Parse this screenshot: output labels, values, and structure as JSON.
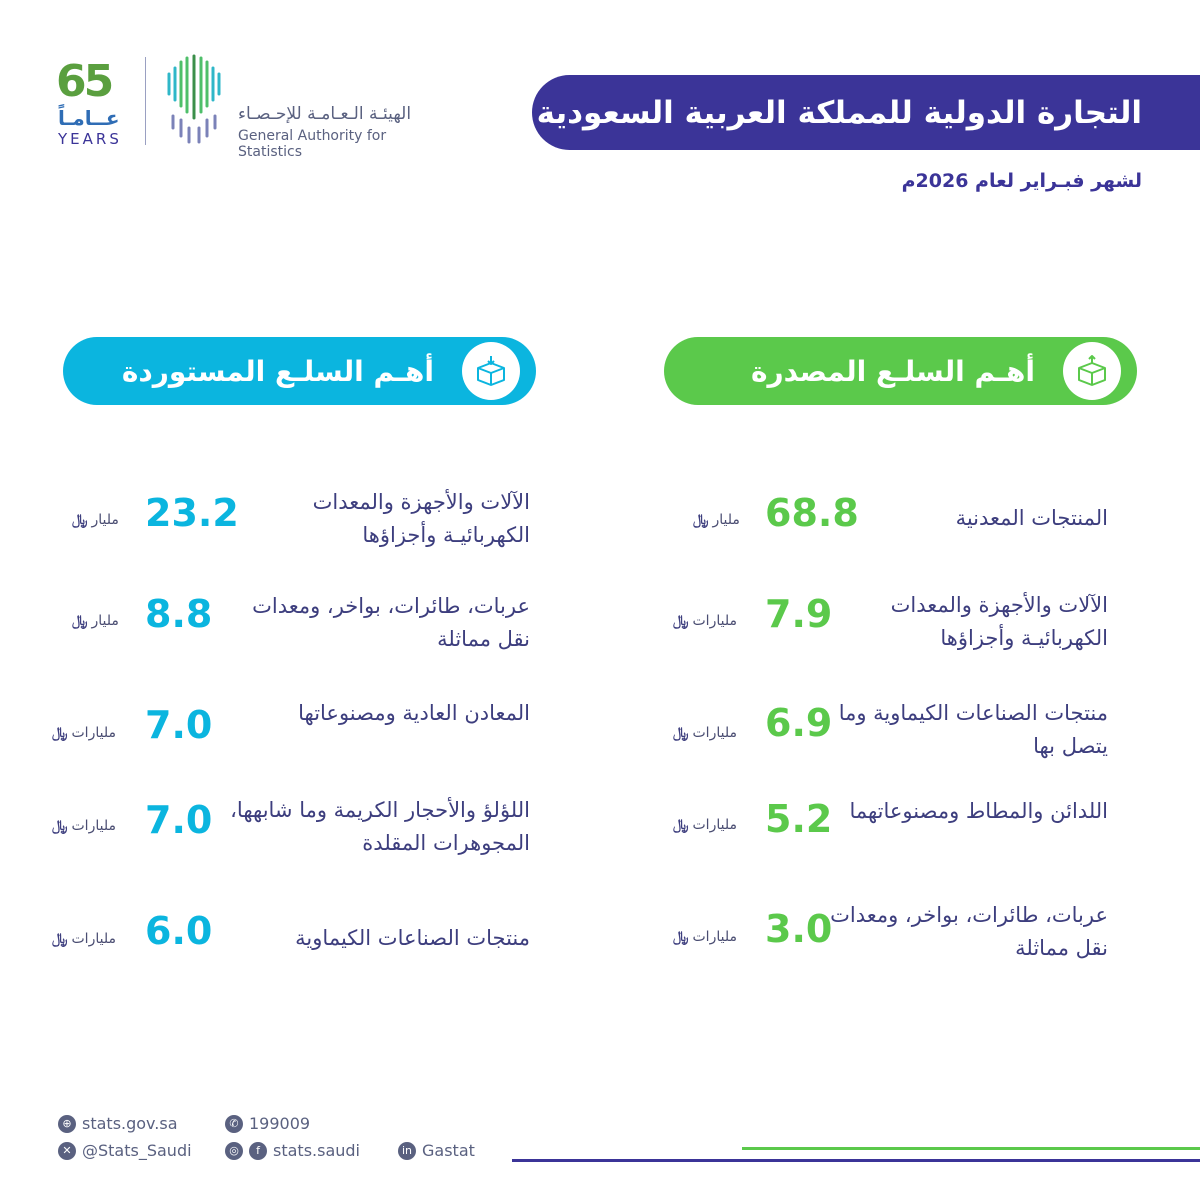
{
  "header": {
    "title": "التجارة الدولية للمملكة العربية السعودية",
    "subtitle": "لشهر فبـراير لعام 2026م",
    "colors": {
      "title_banner": "#3b3498",
      "exports": "#5bc94b",
      "imports": "#0bb5df"
    }
  },
  "logo": {
    "years_number": "65",
    "years_ar": "عــامـاً",
    "years_en": "YEARS",
    "authority_ar": "الهيئـة الـعـامـة للإحـصـاء",
    "authority_en": "General Authority for Statistics"
  },
  "exports": {
    "heading": "أهـم السلـع المصدرة",
    "icon": "box-export-icon",
    "items": [
      {
        "label": "المنتجات المعدنية",
        "value": "68.8",
        "unit": "مليار"
      },
      {
        "label": "الآلات والأجهزة والمعدات الكهربائيـة وأجزاؤها",
        "value": "7.9",
        "unit": "مليارات"
      },
      {
        "label": "منتجات الصناعات الكيماوية وما يتصل بها",
        "value": "6.9",
        "unit": "مليارات"
      },
      {
        "label": "اللدائن والمطاط ومصنوعاتهما",
        "value": "5.2",
        "unit": "مليارات"
      },
      {
        "label": "عربات، طائرات، بواخر، ومعدات نقل مماثلة",
        "value": "3.0",
        "unit": "مليارات"
      }
    ]
  },
  "imports": {
    "heading": "أهـم السلـع المستوردة",
    "icon": "box-import-icon",
    "items": [
      {
        "label": "الآلات والأجهزة والمعدات الكهربائيـة وأجزاؤها",
        "value": "23.2",
        "unit": "مليار"
      },
      {
        "label": "عربات، طائرات، بواخر، ومعدات نقل مماثلة",
        "value": "8.8",
        "unit": "مليار"
      },
      {
        "label": "المعادن العادية ومصنوعاتها",
        "value": "7.0",
        "unit": "مليارات"
      },
      {
        "label": "اللؤلؤ والأحجار الكريمة وما شابهها، المجوهرات المقلدة",
        "value": "7.0",
        "unit": "مليارات"
      },
      {
        "label": "منتجات الصناعات الكيماوية",
        "value": "6.0",
        "unit": "مليارات"
      }
    ]
  },
  "currency_symbol": "﷼",
  "footer": {
    "website": "stats.gov.sa",
    "phone": "199009",
    "x_handle": "@Stats_Saudi",
    "social": "stats.saudi",
    "linkedin": "Gastat"
  }
}
